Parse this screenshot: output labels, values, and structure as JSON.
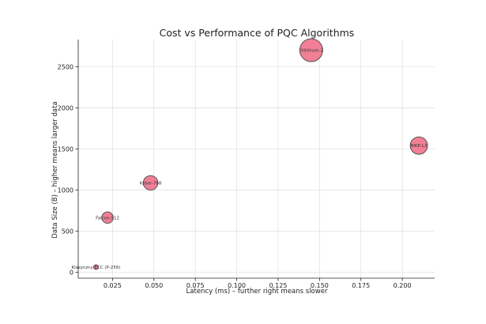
{
  "chart_data": {
    "type": "scatter",
    "title": "Cost vs Performance of PQC Algorithms",
    "xlabel": "Latency (ms) – further right means slower",
    "ylabel": "Data Size (B) – higher means larger data",
    "xlim": [
      0.0043,
      0.2195
    ],
    "ylim": [
      -70,
      2830
    ],
    "xticks": [
      0.025,
      0.05,
      0.075,
      0.1,
      0.125,
      0.15,
      0.175,
      0.2
    ],
    "xtick_labels": [
      "0.025",
      "0.050",
      "0.075",
      "0.100",
      "0.125",
      "0.150",
      "0.175",
      "0.200"
    ],
    "yticks": [
      0,
      500,
      1000,
      1500,
      2000,
      2500
    ],
    "ytick_labels": [
      "0",
      "500",
      "1000",
      "1500",
      "2000",
      "2500"
    ],
    "grid": true,
    "point_color": "#f07890",
    "point_edge_color": "#555555",
    "points": [
      {
        "label": "Klasyczny ECC (P-256)",
        "x": 0.015,
        "y": 64,
        "size": 64
      },
      {
        "label": "Falcon-512",
        "x": 0.022,
        "y": 666,
        "size": 666
      },
      {
        "label": "Kyber-768",
        "x": 0.048,
        "y": 1088,
        "size": 1088
      },
      {
        "label": "Dilithium-2",
        "x": 0.145,
        "y": 2700,
        "size": 2700
      },
      {
        "label": "BIKE-L3",
        "x": 0.21,
        "y": 1541,
        "size": 1541
      }
    ]
  }
}
